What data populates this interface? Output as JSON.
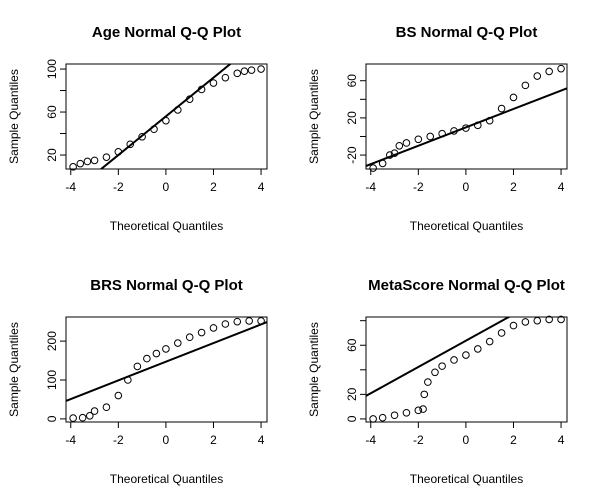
{
  "chart_data": [
    {
      "type": "qq",
      "title": "Age Normal Q-Q Plot",
      "x_label": "Theoretical Quantiles",
      "y_label": "Sample Quantiles",
      "x": [
        -3.9,
        -3.6,
        -3.3,
        -3,
        -2.5,
        -2,
        -1.5,
        -1,
        -0.5,
        0,
        0.5,
        1,
        1.5,
        2,
        2.5,
        3,
        3.3,
        3.6,
        4
      ],
      "y": [
        9,
        12,
        14,
        15,
        18,
        23,
        30,
        37,
        44,
        52,
        62,
        72,
        81,
        87,
        92,
        96,
        98,
        99,
        100
      ],
      "ref_line": {
        "intercept": 56,
        "slope": 18
      },
      "xlim": [
        -4.2,
        4.25
      ],
      "ylim": [
        7,
        104.7
      ],
      "xticks": [
        -4,
        -2,
        0,
        2,
        4
      ],
      "yticks": [
        20,
        60,
        100
      ],
      "yminor": [
        40,
        80
      ]
    },
    {
      "type": "qq",
      "title": "BS Normal Q-Q Plot",
      "x_label": "Theoretical Quantiles",
      "y_label": "Sample Quantiles",
      "x": [
        -3.9,
        -3.5,
        -3.2,
        -3,
        -2.8,
        -2.5,
        -2,
        -1.5,
        -1,
        -0.5,
        0,
        0.5,
        1,
        1.5,
        2,
        2.5,
        3,
        3.5,
        4
      ],
      "y": [
        -34,
        -29,
        -20,
        -18,
        -10,
        -7,
        -3,
        0,
        3,
        6,
        9,
        12,
        17,
        30,
        42,
        55,
        65,
        70,
        73
      ],
      "ref_line": {
        "intercept": 9.8,
        "slope": 9.9
      },
      "xlim": [
        -4.2,
        4.25
      ],
      "ylim": [
        -35,
        78
      ],
      "xticks": [
        -4,
        -2,
        0,
        2,
        4
      ],
      "yticks": [
        -20,
        20,
        60
      ],
      "yminor": [
        0,
        40
      ]
    },
    {
      "type": "qq",
      "title": "BRS Normal Q-Q Plot",
      "x_label": "Theoretical Quantiles",
      "y_label": "Sample Quantiles",
      "x": [
        -3.9,
        -3.5,
        -3.2,
        -3,
        -2.5,
        -2,
        -1.6,
        -1.2,
        -0.8,
        -0.4,
        0,
        0.5,
        1,
        1.5,
        2,
        2.5,
        3,
        3.5,
        4
      ],
      "y": [
        2,
        3,
        8,
        20,
        30,
        60,
        100,
        135,
        155,
        168,
        180,
        195,
        210,
        222,
        234,
        244,
        250,
        252,
        252
      ],
      "ref_line": {
        "intercept": 147,
        "slope": 24
      },
      "xlim": [
        -4.2,
        4.25
      ],
      "ylim": [
        -8,
        262
      ],
      "xticks": [
        -4,
        -2,
        0,
        2,
        4
      ],
      "yticks": [
        0,
        100,
        200
      ],
      "yminor": []
    },
    {
      "type": "qq",
      "title": "MetaScore Normal Q-Q Plot",
      "x_label": "Theoretical Quantiles",
      "y_label": "Sample Quantiles",
      "x": [
        -3.9,
        -3.5,
        -3,
        -2.5,
        -2,
        -1.8,
        -1.75,
        -1.6,
        -1.3,
        -1,
        -0.5,
        0,
        0.5,
        1,
        1.5,
        2,
        2.5,
        3,
        3.5,
        4
      ],
      "y": [
        0,
        1,
        3,
        5,
        7,
        8,
        20,
        30,
        38,
        43,
        48,
        52,
        57,
        63,
        70,
        76,
        79,
        80,
        81,
        81
      ],
      "ref_line": {
        "intercept": 63.7,
        "slope": 10.7
      },
      "xlim": [
        -4.2,
        4.25
      ],
      "ylim": [
        -2.5,
        83
      ],
      "xticks": [
        -4,
        -2,
        0,
        2,
        4
      ],
      "yticks": [
        0,
        20,
        60
      ],
      "yminor": [
        40,
        80
      ]
    }
  ]
}
